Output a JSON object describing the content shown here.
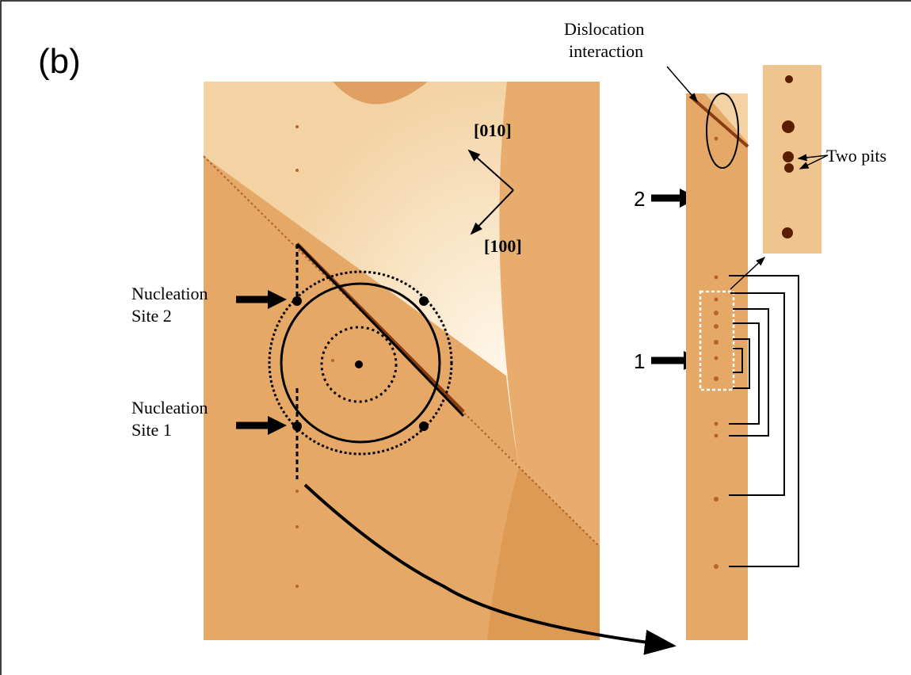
{
  "panel_label": "(b)",
  "dislocation_label": [
    "Dislocation",
    "interaction"
  ],
  "two_pits_label": "Two pits",
  "directions": [
    "[010]",
    "[100]"
  ],
  "nucleation_site_2": [
    "Nucleation",
    "Site 2"
  ],
  "nucleation_site_1": [
    "Nucleation",
    "Site 1"
  ],
  "strip_markers": [
    "2",
    "1"
  ]
}
